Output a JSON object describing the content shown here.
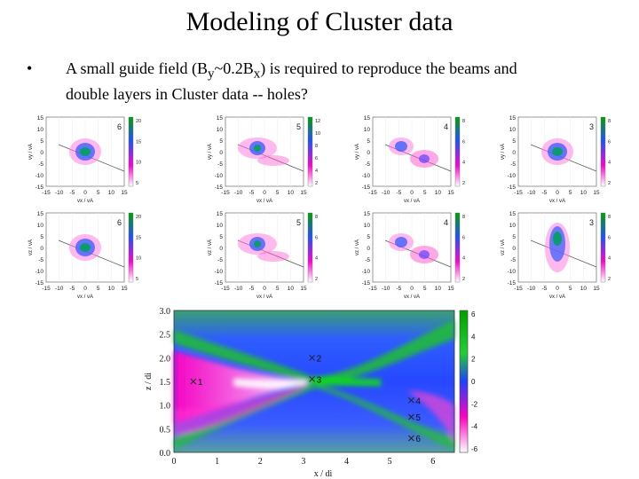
{
  "slide": {
    "title": "Modeling of Cluster data",
    "bullet": {
      "symbol": "•",
      "line1_prefix": "A small guide field (B",
      "line1_sub_y": "y",
      "line1_mid": "~0.2B",
      "line1_sub_x": "x",
      "line1_suffix": ") is required to reproduce the beams and",
      "line2": "double layers in Cluster data -- holes?"
    }
  },
  "distribution_panels": [
    {
      "label": "6",
      "xlabel": "vx / vA",
      "ylabel": "vy / vA",
      "colorbar_ticks": [
        "20",
        "15",
        "10",
        "5"
      ]
    },
    {
      "label": "5",
      "xlabel": "vx / vA",
      "ylabel": "vy / vA",
      "colorbar_ticks": [
        "12",
        "10",
        "8",
        "6",
        "4",
        "2"
      ]
    },
    {
      "label": "4",
      "xlabel": "vx / vA",
      "ylabel": "vy / vA",
      "colorbar_ticks": [
        "8",
        "6",
        "4",
        "2"
      ]
    },
    {
      "label": "3",
      "xlabel": "vx / vA",
      "ylabel": "vy / vA",
      "colorbar_ticks": [
        "8",
        "6",
        "4",
        "2"
      ]
    },
    {
      "label": "6",
      "xlabel": "vx / vA",
      "ylabel": "vz / vA",
      "colorbar_ticks": [
        "20",
        "15",
        "10",
        "5"
      ]
    },
    {
      "label": "5",
      "xlabel": "vx / vA",
      "ylabel": "vz / vA",
      "colorbar_ticks": [
        "8",
        "6",
        "4",
        "2"
      ]
    },
    {
      "label": "4",
      "xlabel": "vx / vA",
      "ylabel": "vz / vA",
      "colorbar_ticks": [
        "8",
        "6",
        "4",
        "2"
      ]
    },
    {
      "label": "3",
      "xlabel": "vx / vA",
      "ylabel": "vz / vA",
      "colorbar_ticks": [
        "8",
        "6",
        "4",
        "2"
      ]
    }
  ],
  "panel_axis_ticks": {
    "y": [
      "15",
      "10",
      "5",
      "0",
      "-5",
      "-10",
      "-15"
    ],
    "x": [
      "-15",
      "-10",
      "-5",
      "0",
      "5",
      "10",
      "15"
    ]
  },
  "chart_data": {
    "type": "heatmap",
    "xlabel": "x / di",
    "ylabel": "z / di",
    "xlim": [
      0,
      6.5
    ],
    "ylim": [
      0,
      3.0
    ],
    "x_ticks": [
      0,
      1,
      2,
      3,
      4,
      5,
      6
    ],
    "y_ticks": [
      0.0,
      0.5,
      1.0,
      1.5,
      2.0,
      2.5,
      3.0
    ],
    "colorbar_ticks": [
      6,
      4,
      2,
      0,
      -2,
      -4,
      -6
    ],
    "markers": [
      {
        "label": "2",
        "x": 3.2,
        "z": 2.0
      },
      {
        "label": "3",
        "x": 3.2,
        "z": 1.55
      },
      {
        "label": "4",
        "x": 5.5,
        "z": 1.1
      },
      {
        "label": "5",
        "x": 5.5,
        "z": 0.75
      },
      {
        "label": "6",
        "x": 5.5,
        "z": 0.3
      },
      {
        "label": "1",
        "x": 0.45,
        "z": 1.5
      }
    ],
    "colors": {
      "high": "#00b000",
      "mid": "#2040ff",
      "low": "#ff00c0",
      "lowest": "#ffffff"
    }
  }
}
